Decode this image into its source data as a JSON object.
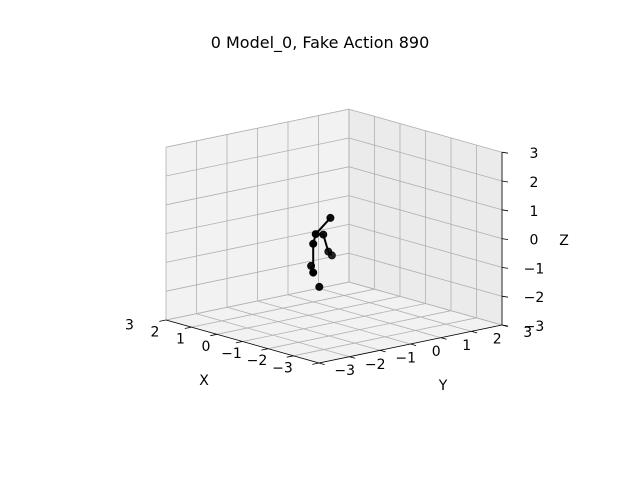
{
  "chart_data": {
    "type": "scatter",
    "projection": "3d",
    "title": "0 Model_0, Fake Action 890",
    "xlabel": "X",
    "ylabel": "Y",
    "zlabel": "Z",
    "xlim": [
      -3,
      3
    ],
    "ylim": [
      -3,
      3
    ],
    "zlim": [
      -3,
      3
    ],
    "xticks": [
      "−3",
      "−2",
      "−1",
      "0",
      "1",
      "2",
      "3"
    ],
    "yticks": [
      "−3",
      "−2",
      "−1",
      "0",
      "1",
      "2",
      "3"
    ],
    "zticks": [
      "−3",
      "−2",
      "−1",
      "0",
      "1",
      "2",
      "3"
    ],
    "grid": true,
    "points": [
      {
        "id": "p0",
        "x": 0.0,
        "y": -0.6,
        "z": 0.2
      },
      {
        "id": "p1",
        "x": -0.5,
        "y": -1.1,
        "z": 0.1
      },
      {
        "id": "p2",
        "x": -0.1,
        "y": -0.2,
        "z": 0.7
      },
      {
        "id": "p3",
        "x": 0.3,
        "y": -0.1,
        "z": 0.0
      },
      {
        "id": "p4",
        "x": 0.7,
        "y": 0.4,
        "z": -0.8
      },
      {
        "id": "p5",
        "x": 0.8,
        "y": 0.6,
        "z": -1.0
      },
      {
        "id": "p6",
        "x": -0.5,
        "y": -1.1,
        "z": -0.9
      },
      {
        "id": "p7",
        "x": 0.3,
        "y": -0.5,
        "z": -1.0
      },
      {
        "id": "p8",
        "x": 0.1,
        "y": -0.4,
        "z": -1.7
      }
    ],
    "bones": [
      [
        "p0",
        "p1"
      ],
      [
        "p0",
        "p2"
      ],
      [
        "p0",
        "p3"
      ],
      [
        "p3",
        "p4"
      ],
      [
        "p4",
        "p5"
      ],
      [
        "p1",
        "p6"
      ],
      [
        "p6",
        "p7"
      ]
    ]
  }
}
